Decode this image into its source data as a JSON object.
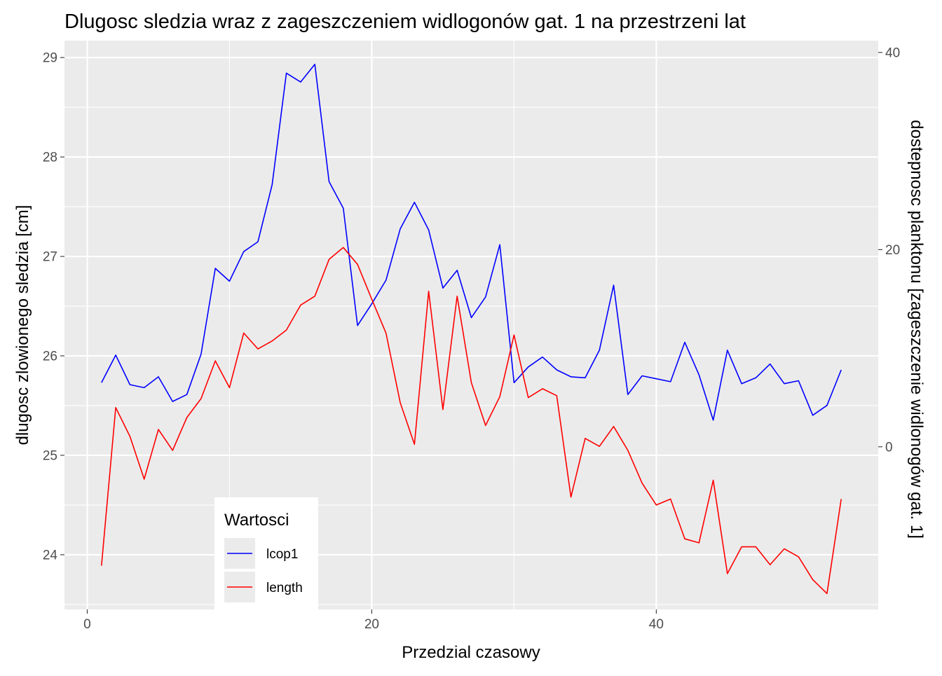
{
  "chart_data": {
    "type": "line",
    "title": "Dlugosc sledzia wraz z zageszczeniem widlogonów gat. 1 na przestrzeni lat",
    "xlabel": "Przedzial czasowy",
    "ylabel": "dlugosc zlowionego sledzia [cm]",
    "y2label": "dostepnosc planktonu [zageszczenie widlonogów gat. 1]",
    "xlim": [
      -1.6,
      55.6
    ],
    "ylim": [
      23.45,
      29.17
    ],
    "y2lim": [
      -16.5,
      41.2
    ],
    "x_ticks": [
      0,
      20,
      40
    ],
    "y_ticks": [
      24,
      25,
      26,
      27,
      28,
      29
    ],
    "y2_ticks": [
      0,
      20,
      40
    ],
    "grid": true,
    "legend": {
      "title": "Wartosci",
      "position": "bottom-left inside",
      "entries": [
        {
          "label": "lcop1",
          "color": "#0000ff"
        },
        {
          "label": "length",
          "color": "#ff0000"
        }
      ]
    },
    "x": [
      1,
      2,
      3,
      4,
      5,
      6,
      7,
      8,
      9,
      10,
      11,
      12,
      13,
      14,
      15,
      16,
      17,
      18,
      19,
      20,
      21,
      22,
      23,
      24,
      25,
      26,
      27,
      28,
      29,
      30,
      31,
      32,
      33,
      34,
      35,
      36,
      37,
      38,
      39,
      40,
      41,
      42,
      43,
      44,
      45,
      46,
      47,
      48,
      49,
      50,
      51,
      52,
      53
    ],
    "series": [
      {
        "name": "lcop1",
        "axis": "right",
        "color": "#0000ff",
        "values": [
          6.5,
          9.3,
          6.3,
          6.0,
          7.1,
          4.6,
          5.3,
          9.4,
          18.1,
          16.8,
          19.8,
          20.8,
          26.6,
          37.9,
          37.0,
          38.8,
          26.9,
          24.2,
          12.3,
          14.5,
          16.9,
          22.1,
          24.8,
          22.0,
          16.1,
          17.9,
          13.1,
          15.2,
          20.5,
          6.5,
          8.1,
          9.1,
          7.8,
          7.1,
          7.0,
          9.8,
          16.4,
          5.3,
          7.2,
          6.9,
          6.6,
          10.6,
          7.3,
          2.7,
          9.8,
          6.4,
          7.0,
          8.4,
          6.4,
          6.7,
          3.2,
          4.2,
          7.8
        ]
      },
      {
        "name": "length",
        "axis": "left",
        "color": "#ff0000",
        "values": [
          23.89,
          25.48,
          25.19,
          24.76,
          25.26,
          25.05,
          25.38,
          25.57,
          25.95,
          25.68,
          26.23,
          26.07,
          26.15,
          26.26,
          26.51,
          26.6,
          26.97,
          27.09,
          26.92,
          26.57,
          26.23,
          25.53,
          25.11,
          26.65,
          25.46,
          26.6,
          25.73,
          25.3,
          25.59,
          26.21,
          25.58,
          25.67,
          25.6,
          24.58,
          25.17,
          25.09,
          25.29,
          25.05,
          24.72,
          24.5,
          24.56,
          24.16,
          24.12,
          24.75,
          23.81,
          24.08,
          24.08,
          23.9,
          24.06,
          23.98,
          23.75,
          23.61,
          24.56
        ]
      }
    ]
  }
}
